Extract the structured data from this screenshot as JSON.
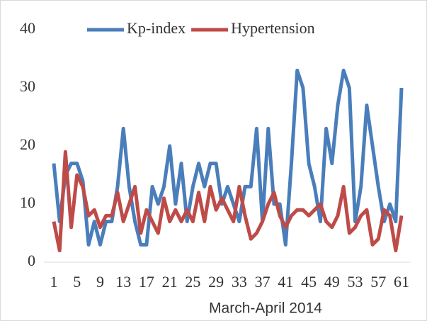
{
  "chart_data": {
    "type": "line",
    "x": [
      1,
      2,
      3,
      4,
      5,
      6,
      7,
      8,
      9,
      10,
      11,
      12,
      13,
      14,
      15,
      16,
      17,
      18,
      19,
      20,
      21,
      22,
      23,
      24,
      25,
      26,
      27,
      28,
      29,
      30,
      31,
      32,
      33,
      34,
      35,
      36,
      37,
      38,
      39,
      40,
      41,
      42,
      43,
      44,
      45,
      46,
      47,
      48,
      49,
      50,
      51,
      52,
      53,
      54,
      55,
      56,
      57,
      58,
      59,
      60,
      61
    ],
    "xlabel": "March-April 2014",
    "xlim": [
      1,
      61
    ],
    "xticks": [
      1,
      5,
      9,
      13,
      17,
      21,
      25,
      29,
      33,
      37,
      41,
      45,
      49,
      53,
      57,
      61
    ],
    "ylim": [
      0,
      40
    ],
    "yticks": [
      0,
      10,
      20,
      30,
      40
    ],
    "grid": false,
    "legend": "top",
    "series": [
      {
        "name": "Kp-index",
        "color": "#4a7ebb",
        "values": [
          17,
          7,
          15,
          17,
          17,
          14,
          3,
          7,
          3,
          7,
          7,
          13,
          23,
          13,
          7,
          3,
          3,
          13,
          10,
          13,
          20,
          10,
          17,
          7,
          13,
          17,
          13,
          17,
          17,
          10,
          13,
          10,
          7,
          13,
          13,
          23,
          7,
          23,
          10,
          10,
          3,
          17,
          33,
          30,
          17,
          13,
          7,
          23,
          17,
          27,
          33,
          30,
          7,
          13,
          27,
          20,
          13,
          7,
          10,
          7,
          30
        ]
      },
      {
        "name": "Hypertension",
        "color": "#be4b48",
        "values": [
          7,
          2,
          19,
          6,
          15,
          13,
          8,
          9,
          6,
          8,
          8,
          12,
          7,
          10,
          13,
          5,
          9,
          7,
          5,
          11,
          7,
          9,
          7,
          9,
          7,
          12,
          7,
          13,
          9,
          11,
          9,
          7,
          13,
          8,
          4,
          5,
          7,
          10,
          12,
          8,
          6,
          8,
          9,
          9,
          8,
          9,
          10,
          7,
          6,
          8,
          13,
          5,
          6,
          8,
          9,
          3,
          4,
          9,
          8,
          2,
          8
        ]
      }
    ]
  }
}
